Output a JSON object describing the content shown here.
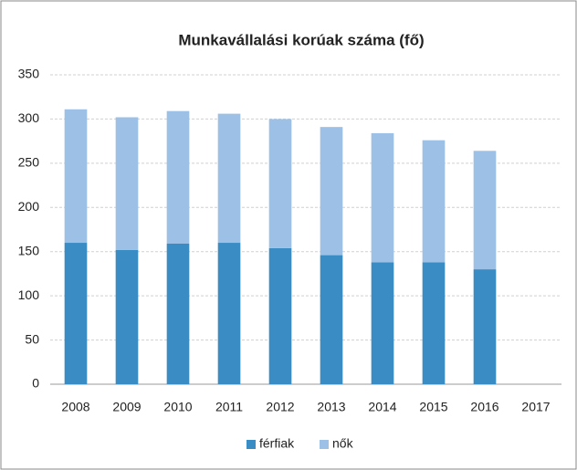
{
  "chart_data": {
    "type": "bar",
    "stacked": true,
    "title": "Munkavállalási korúak száma (fő)",
    "categories": [
      "2008",
      "2009",
      "2010",
      "2011",
      "2012",
      "2013",
      "2014",
      "2015",
      "2016",
      "2017"
    ],
    "series": [
      {
        "name": "férfiak",
        "color": "#3a8cc4",
        "values": [
          160,
          152,
          159,
          160,
          154,
          146,
          138,
          138,
          130,
          null
        ]
      },
      {
        "name": "nők",
        "color": "#9dc0e6",
        "values": [
          151,
          150,
          150,
          146,
          146,
          145,
          146,
          138,
          134,
          null
        ]
      }
    ],
    "ylim": [
      0,
      350
    ],
    "yticks": [
      0,
      50,
      100,
      150,
      200,
      250,
      300,
      350
    ],
    "grid": true,
    "legend": "bottom"
  }
}
